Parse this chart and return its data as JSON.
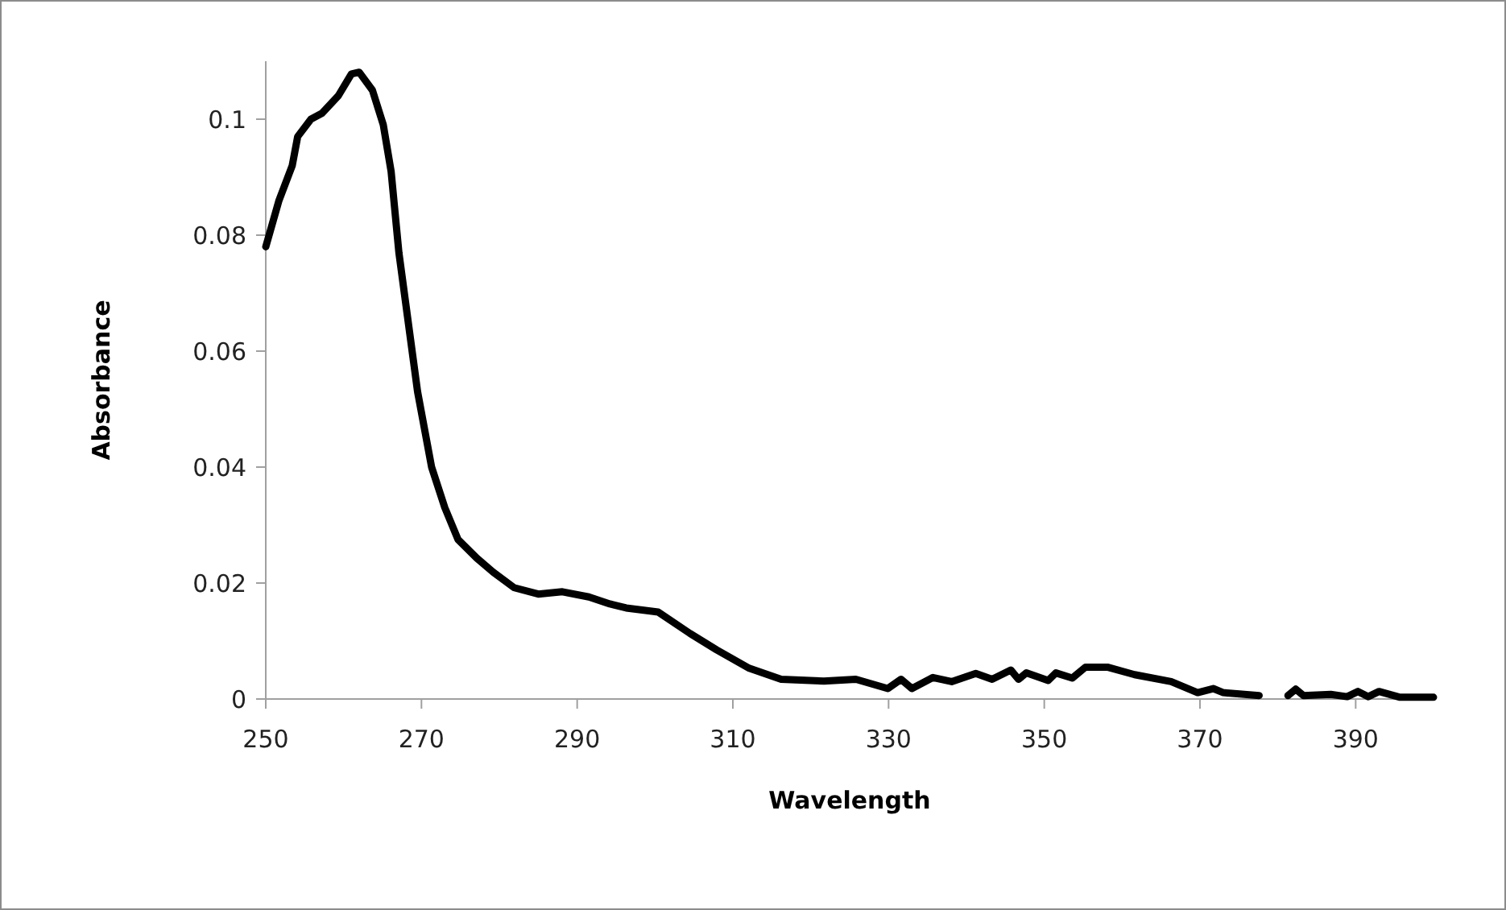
{
  "chart_data": {
    "type": "line",
    "xlabel": "Wavelength",
    "ylabel": "Absorbance",
    "xlim": [
      250,
      400
    ],
    "xticks": [
      250,
      270,
      290,
      310,
      330,
      350,
      370,
      390
    ],
    "ylim": [
      0,
      0.11
    ],
    "yticks": [
      0,
      0.02,
      0.04,
      0.06,
      0.08,
      0.1
    ],
    "grid": false,
    "marker": "none",
    "line_style": "solid",
    "series": [
      {
        "color": "#000000",
        "x": [
          250,
          251.7,
          253.4,
          254.1,
          255.8,
          257.2,
          259.3,
          261,
          262,
          263.7,
          265.1,
          266.1,
          267.1,
          268.2,
          269.5,
          271.3,
          273,
          274.7,
          277.1,
          279.2,
          281.9,
          285,
          288.1,
          291.5,
          294.2,
          296.3,
          300.4,
          304.5,
          307.9,
          312.1,
          316.2,
          321.7,
          325.8,
          329.9,
          331.6,
          333,
          335.7,
          338.1,
          341.2,
          343.3,
          345.7,
          346.7,
          347.7,
          350.5,
          351.5,
          353.6,
          355.3,
          358.1,
          361.6,
          366.3,
          369.7,
          371.7,
          373,
          377.6,
          380,
          381.3,
          382.3,
          383.3,
          386.8,
          388.9,
          390.3,
          391.6,
          393,
          395.7,
          400
        ],
        "values": [
          0.078,
          0.086,
          0.092,
          0.097,
          0.1,
          0.101,
          0.104,
          0.1078,
          0.1081,
          0.105,
          0.099,
          0.091,
          0.077,
          0.066,
          0.053,
          0.04,
          0.033,
          0.0275,
          0.0243,
          0.0219,
          0.0192,
          0.0181,
          0.0185,
          0.0176,
          0.0164,
          0.0157,
          0.015,
          0.0113,
          0.0085,
          0.0053,
          0.0034,
          0.0031,
          0.0034,
          0.0018,
          0.0034,
          0.0018,
          0.0037,
          0.003,
          0.0044,
          0.0034,
          0.005,
          0.0034,
          0.0045,
          0.0032,
          0.0045,
          0.0036,
          0.0055,
          0.0055,
          0.0042,
          0.003,
          0.0011,
          0.0018,
          0.0011,
          0.0006,
          null,
          0.0006,
          0.0017,
          0.0006,
          0.0008,
          0.0004,
          0.0013,
          0.0004,
          0.0013,
          0.0003,
          0.0003
        ]
      }
    ]
  }
}
